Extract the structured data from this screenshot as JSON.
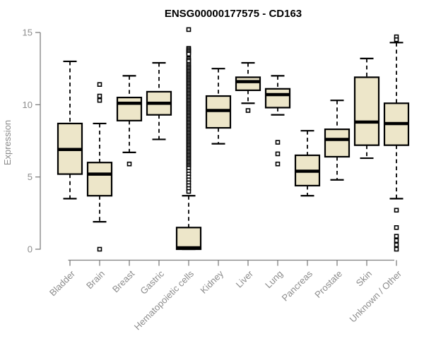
{
  "page": {
    "background": "#FFFFFF"
  },
  "colors": {
    "box_fill": "#EDE6C9",
    "box_stroke": "#000000",
    "median": "#000000",
    "whisker": "#000000",
    "outlier_stroke": "#000000",
    "outlier_fill": "#FFFFFF",
    "axis": "#7F7F7F",
    "text_muted": "#8C8C8C",
    "title": "#000000",
    "background": "#FFFFFF"
  },
  "chart_data": {
    "type": "boxplot",
    "title": "ENSG00000177575 - CD163",
    "xlabel": "",
    "ylabel": "Expression",
    "ylim": [
      0,
      15
    ],
    "yticks": [
      0,
      5,
      10,
      15
    ],
    "grid": false,
    "legend": false,
    "categories": [
      "Bladder",
      "Brain",
      "Breast",
      "Gastric",
      "Hematopoietic cells",
      "Kidney",
      "Liver",
      "Lung",
      "Pancreas",
      "Prostate",
      "Skin",
      "Unknown / Other"
    ],
    "series": [
      {
        "name": "Bladder",
        "low": 3.5,
        "q1": 5.2,
        "median": 6.9,
        "q3": 8.7,
        "high": 13.0,
        "outliers": []
      },
      {
        "name": "Brain",
        "low": 1.9,
        "q1": 3.7,
        "median": 5.2,
        "q3": 6.0,
        "high": 8.7,
        "outliers": [
          11.4,
          10.6,
          10.3,
          0.0
        ]
      },
      {
        "name": "Breast",
        "low": 6.7,
        "q1": 8.9,
        "median": 10.1,
        "q3": 10.5,
        "high": 12.0,
        "outliers": [
          5.9
        ]
      },
      {
        "name": "Gastric",
        "low": 7.6,
        "q1": 9.3,
        "median": 10.1,
        "q3": 10.9,
        "high": 12.9,
        "outliers": []
      },
      {
        "name": "Hematopoietic cells",
        "low": 0.0,
        "q1": 0.0,
        "median": 0.1,
        "q3": 1.5,
        "high": 3.7,
        "outliers": [
          15.2,
          13.9,
          13.8,
          13.7,
          13.6,
          13.5,
          13.2,
          13.1,
          13.0,
          12.8,
          12.7,
          12.6,
          12.5,
          12.4,
          12.3,
          12.2,
          12.1,
          12.0,
          11.9,
          11.8,
          11.7,
          11.6,
          11.5,
          11.4,
          11.3,
          11.2,
          11.1,
          11.0,
          10.9,
          10.8,
          10.7,
          10.6,
          10.5,
          10.4,
          10.3,
          10.2,
          10.1,
          10.0,
          9.9,
          9.8,
          9.7,
          9.6,
          9.5,
          9.4,
          9.3,
          9.2,
          9.1,
          9.0,
          8.9,
          8.8,
          8.7,
          8.6,
          8.5,
          8.4,
          8.3,
          8.2,
          8.1,
          8.0,
          7.9,
          7.8,
          7.7,
          7.6,
          7.5,
          7.4,
          7.3,
          7.2,
          7.1,
          7.0,
          6.9,
          6.8,
          6.7,
          6.6,
          6.5,
          6.4,
          6.3,
          6.2,
          6.1,
          6.0,
          5.9,
          5.8,
          5.7,
          5.6,
          5.4,
          5.2,
          5.0,
          4.8,
          4.6,
          4.4,
          4.2,
          4.0
        ]
      },
      {
        "name": "Kidney",
        "low": 7.3,
        "q1": 8.4,
        "median": 9.6,
        "q3": 10.6,
        "high": 12.5,
        "outliers": []
      },
      {
        "name": "Liver",
        "low": 10.1,
        "q1": 11.0,
        "median": 11.6,
        "q3": 11.9,
        "high": 12.9,
        "outliers": [
          9.6
        ]
      },
      {
        "name": "Lung",
        "low": 9.3,
        "q1": 9.8,
        "median": 10.7,
        "q3": 11.1,
        "high": 12.0,
        "outliers": [
          7.4,
          6.6,
          5.9
        ]
      },
      {
        "name": "Pancreas",
        "low": 3.7,
        "q1": 4.4,
        "median": 5.4,
        "q3": 6.5,
        "high": 8.2,
        "outliers": []
      },
      {
        "name": "Prostate",
        "low": 4.8,
        "q1": 6.4,
        "median": 7.6,
        "q3": 8.3,
        "high": 10.3,
        "outliers": []
      },
      {
        "name": "Skin",
        "low": 6.3,
        "q1": 7.2,
        "median": 8.8,
        "q3": 11.9,
        "high": 13.2,
        "outliers": []
      },
      {
        "name": "Unknown / Other",
        "low": 3.5,
        "q1": 7.2,
        "median": 8.7,
        "q3": 10.1,
        "high": 14.3,
        "outliers": [
          14.7,
          14.5,
          2.7,
          1.5,
          0.9,
          0.6,
          0.3,
          0.0
        ]
      }
    ]
  }
}
